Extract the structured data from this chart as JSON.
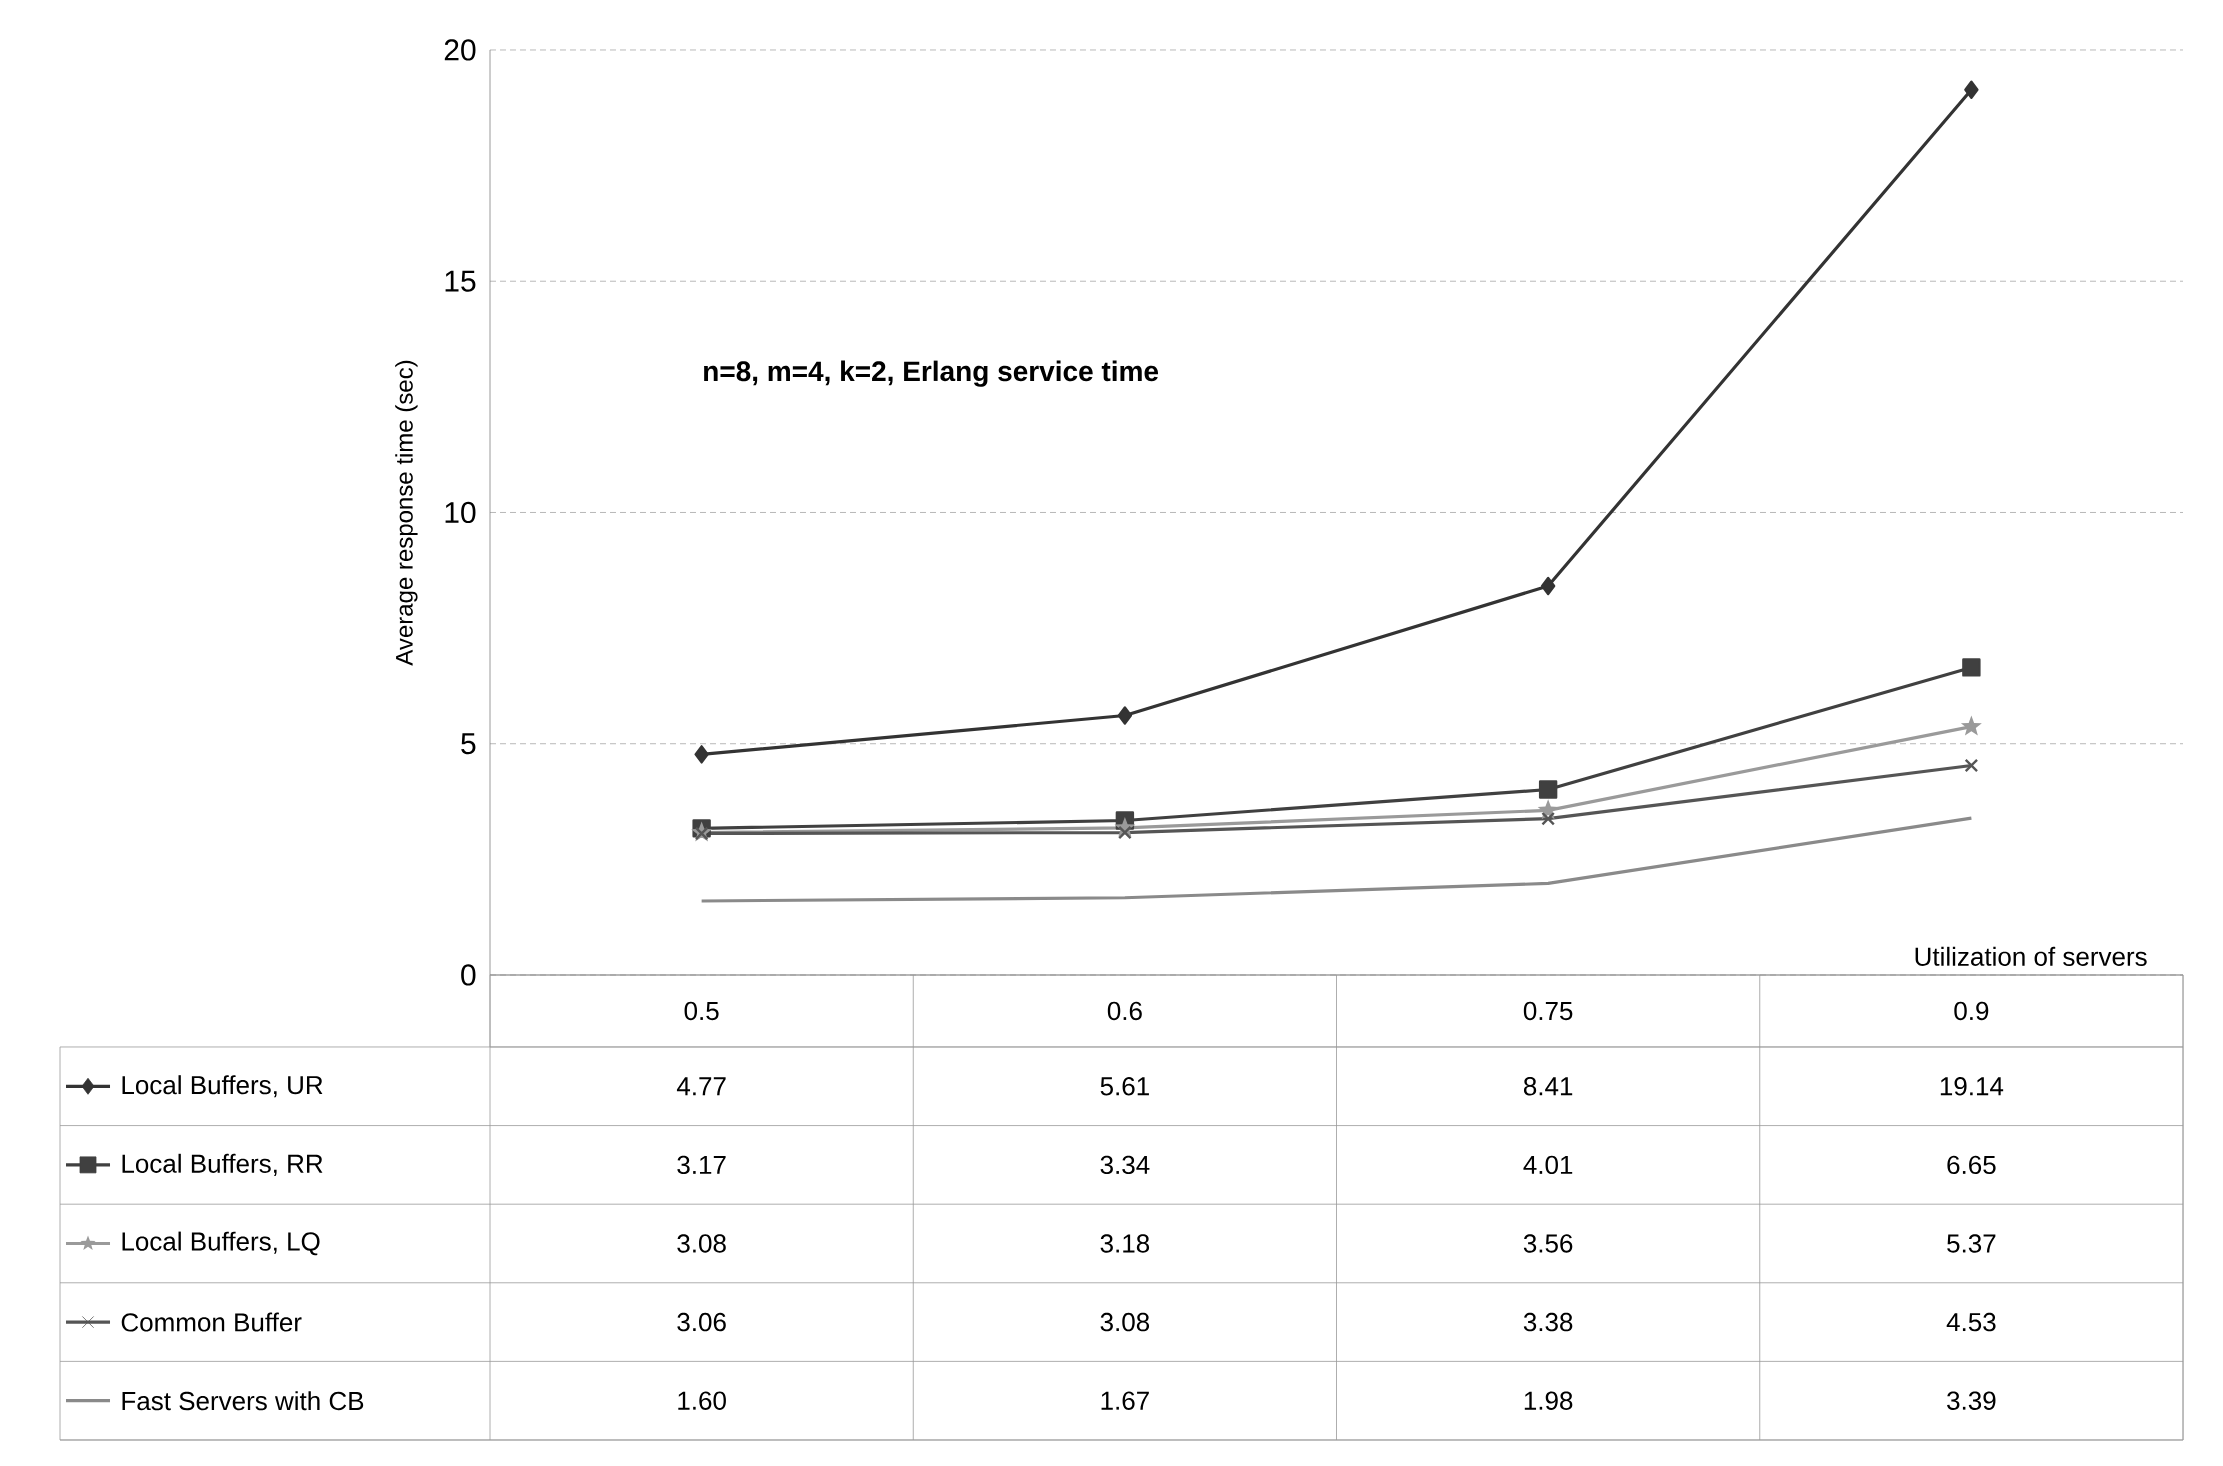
{
  "chart_data": {
    "type": "line",
    "xlabel": "Utilization of servers",
    "ylabel": "Average response time (sec)",
    "annotations": [
      "n=8, m=4, k=2, Erlang service time"
    ],
    "categories": [
      "0.5",
      "0.6",
      "0.75",
      "0.9"
    ],
    "ylim": [
      0,
      20
    ],
    "yticks": [
      0,
      5,
      10,
      15,
      20
    ],
    "grid": "y",
    "legend": "bottom",
    "series": [
      {
        "name": "Local Buffers, UR",
        "color": "#333333",
        "marker": "diamond",
        "values": [
          4.77,
          5.61,
          8.41,
          19.14
        ],
        "value_labels": [
          "4.77",
          "5.61",
          "8.41",
          "19.14"
        ]
      },
      {
        "name": "Local Buffers, RR",
        "color": "#404040",
        "marker": "square",
        "values": [
          3.17,
          3.34,
          4.01,
          6.65
        ],
        "value_labels": [
          "3.17",
          "3.34",
          "4.01",
          "6.65"
        ]
      },
      {
        "name": "Local Buffers, LQ",
        "color": "#9a9a9a",
        "marker": "star",
        "values": [
          3.08,
          3.18,
          3.56,
          5.37
        ],
        "value_labels": [
          "3.08",
          "3.18",
          "3.56",
          "5.37"
        ]
      },
      {
        "name": "Common Buffer",
        "color": "#555555",
        "marker": "cross",
        "values": [
          3.06,
          3.08,
          3.38,
          4.53
        ],
        "value_labels": [
          "3.06",
          "3.08",
          "3.38",
          "4.53"
        ]
      },
      {
        "name": "Fast Servers with CB",
        "color": "#8a8a8a",
        "marker": "none",
        "values": [
          1.6,
          1.67,
          1.98,
          3.39
        ],
        "value_labels": [
          "1.60",
          "1.67",
          "1.98",
          "3.39"
        ]
      }
    ]
  }
}
